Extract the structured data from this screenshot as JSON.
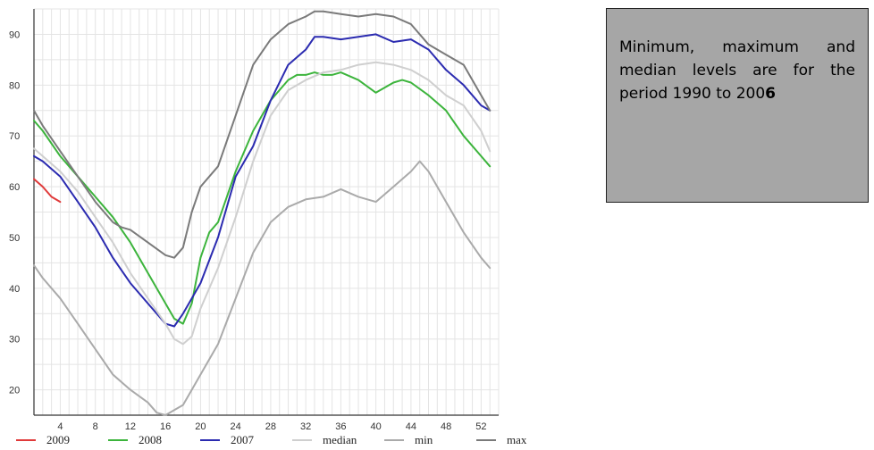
{
  "note": {
    "text": "Minimum, maximum and median levels are for the period 1990 to 200",
    "highlight": "6"
  },
  "chart_data": {
    "type": "line",
    "xlim": [
      1,
      54
    ],
    "ylim": [
      15,
      95
    ],
    "x_ticks": [
      4,
      8,
      12,
      16,
      20,
      24,
      28,
      32,
      36,
      40,
      44,
      48,
      52
    ],
    "y_ticks": [
      20,
      30,
      40,
      50,
      60,
      70,
      80,
      90
    ],
    "grid": true,
    "legend_position": "bottom",
    "series": [
      {
        "name": "2009",
        "color": "#e03a3a",
        "x": [
          1,
          2,
          3,
          4
        ],
        "y": [
          61.5,
          60,
          58,
          57
        ]
      },
      {
        "name": "2008",
        "color": "#3cb43c",
        "x": [
          1,
          2,
          4,
          6,
          8,
          10,
          12,
          14,
          16,
          17,
          18,
          19,
          20,
          21,
          22,
          24,
          26,
          28,
          30,
          31,
          32,
          33,
          34,
          35,
          36,
          38,
          40,
          42,
          43,
          44,
          46,
          48,
          50,
          52,
          53
        ],
        "y": [
          73,
          71,
          66,
          62,
          58,
          54,
          49,
          43,
          37,
          34,
          33,
          37,
          46,
          51,
          53,
          63,
          71,
          77,
          81,
          82,
          82,
          82.5,
          82,
          82,
          82.5,
          81,
          78.5,
          80.5,
          81,
          80.5,
          78,
          75,
          70,
          66,
          64
        ]
      },
      {
        "name": "2007",
        "color": "#2b2bb0",
        "x": [
          1,
          2,
          4,
          6,
          8,
          10,
          12,
          14,
          16,
          17,
          18,
          19,
          20,
          22,
          24,
          26,
          28,
          30,
          32,
          33,
          34,
          36,
          38,
          40,
          42,
          44,
          46,
          48,
          50,
          52,
          53
        ],
        "y": [
          66,
          65,
          62,
          57,
          52,
          46,
          41,
          37,
          33,
          32.5,
          35,
          38,
          41,
          50,
          62,
          68,
          77,
          84,
          87,
          89.5,
          89.5,
          89,
          89.5,
          90,
          88.5,
          89,
          87,
          83,
          80,
          76,
          75
        ]
      },
      {
        "name": "median",
        "color": "#cfcfcf",
        "x": [
          1,
          2,
          4,
          6,
          8,
          10,
          12,
          14,
          16,
          17,
          18,
          19,
          20,
          22,
          24,
          26,
          28,
          30,
          32,
          34,
          36,
          38,
          40,
          42,
          44,
          46,
          48,
          50,
          52,
          53
        ],
        "y": [
          67.5,
          66,
          63,
          59,
          54,
          49,
          43,
          38,
          33,
          30,
          29,
          30.5,
          36,
          44,
          54,
          65,
          74,
          79,
          81,
          82.5,
          83,
          84,
          84.5,
          84,
          83,
          81,
          78,
          76,
          71,
          67
        ]
      },
      {
        "name": "min",
        "color": "#aaaaaa",
        "x": [
          1,
          2,
          4,
          6,
          8,
          10,
          12,
          14,
          15,
          16,
          17,
          18,
          19,
          20,
          22,
          24,
          26,
          28,
          30,
          32,
          34,
          36,
          38,
          40,
          42,
          44,
          45,
          46,
          48,
          50,
          52,
          53
        ],
        "y": [
          44.5,
          42,
          38,
          33,
          28,
          23,
          20,
          17.5,
          15.5,
          15,
          16,
          17,
          20,
          23,
          29,
          38,
          47,
          53,
          56,
          57.5,
          58,
          59.5,
          58,
          57,
          60,
          63,
          65,
          63,
          57,
          51,
          46,
          44
        ]
      },
      {
        "name": "max",
        "color": "#7a7a7a",
        "x": [
          1,
          2,
          4,
          6,
          8,
          10,
          11,
          12,
          14,
          16,
          17,
          18,
          19,
          20,
          22,
          24,
          26,
          28,
          30,
          32,
          33,
          34,
          36,
          38,
          40,
          42,
          44,
          46,
          48,
          50,
          52,
          53
        ],
        "y": [
          75,
          72,
          67,
          62,
          57,
          53,
          52,
          51.5,
          49,
          46.5,
          46,
          48,
          55,
          60,
          64,
          74,
          84,
          89,
          92,
          93.5,
          94.5,
          94.5,
          94,
          93.5,
          94,
          93.5,
          92,
          88,
          86,
          84,
          78,
          75
        ]
      }
    ]
  }
}
